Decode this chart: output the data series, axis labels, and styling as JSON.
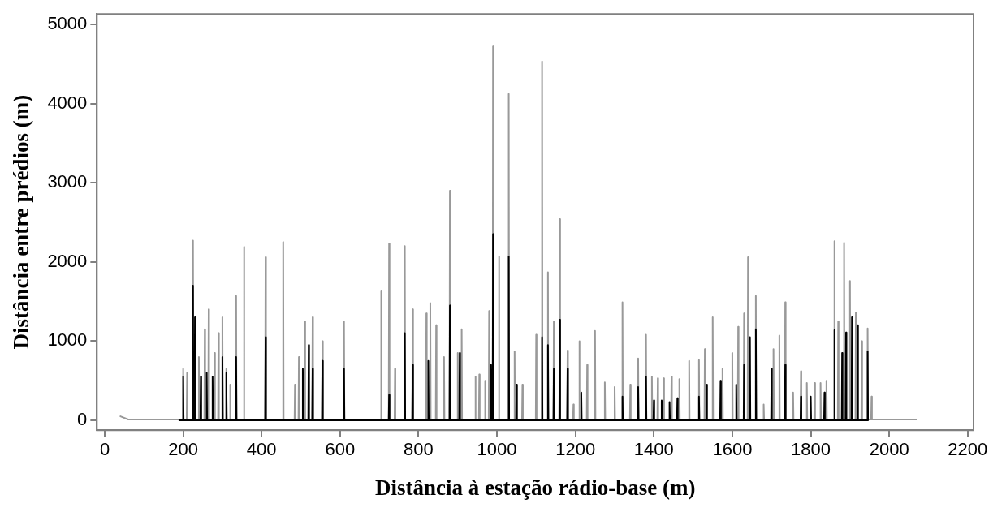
{
  "chart_data": {
    "type": "line",
    "xlabel": "Distância à estação rádio-base (m)",
    "ylabel": "Distância entre prédios (m)",
    "xlim": [
      -20,
      2215
    ],
    "ylim": [
      -125,
      5130
    ],
    "xticks": [
      0,
      200,
      400,
      600,
      800,
      1000,
      1200,
      1400,
      1600,
      1800,
      2000,
      2200
    ],
    "yticks": [
      0,
      1000,
      2000,
      3000,
      4000,
      5000
    ],
    "grid": false,
    "legend": false,
    "marker": "none",
    "line_style": "solid",
    "series": [
      {
        "color": "#999999",
        "x": [
          40,
          60,
          199,
          200,
          201,
          209,
          210,
          211,
          224,
          225,
          226,
          239,
          240,
          241,
          254,
          255,
          256,
          264,
          265,
          266,
          279,
          280,
          281,
          289,
          290,
          291,
          299,
          300,
          301,
          309,
          310,
          311,
          319,
          320,
          321,
          334,
          335,
          336,
          354,
          355,
          356,
          409,
          410,
          411,
          454,
          455,
          456,
          484,
          485,
          486,
          494,
          495,
          496,
          509,
          510,
          511,
          529,
          530,
          531,
          554,
          555,
          556,
          609,
          610,
          611,
          704,
          705,
          706,
          724,
          725,
          726,
          739,
          740,
          741,
          764,
          765,
          766,
          784,
          785,
          786,
          819,
          820,
          821,
          829,
          830,
          831,
          844,
          845,
          846,
          864,
          865,
          866,
          879,
          880,
          881,
          899,
          900,
          901,
          909,
          910,
          911,
          944,
          945,
          946,
          954,
          955,
          956,
          969,
          970,
          971,
          979,
          980,
          981,
          989,
          990,
          991,
          1004,
          1005,
          1006,
          1029,
          1030,
          1031,
          1044,
          1045,
          1046,
          1064,
          1065,
          1066,
          1099,
          1100,
          1101,
          1114,
          1115,
          1116,
          1129,
          1130,
          1131,
          1144,
          1145,
          1146,
          1159,
          1160,
          1161,
          1179,
          1180,
          1181,
          1194,
          1195,
          1196,
          1209,
          1210,
          1211,
          1229,
          1230,
          1231,
          1249,
          1250,
          1251,
          1274,
          1275,
          1276,
          1299,
          1300,
          1301,
          1319,
          1320,
          1321,
          1339,
          1340,
          1341,
          1359,
          1360,
          1361,
          1379,
          1380,
          1381,
          1394,
          1395,
          1396,
          1409,
          1410,
          1411,
          1424,
          1425,
          1426,
          1444,
          1445,
          1446,
          1464,
          1465,
          1466,
          1489,
          1490,
          1491,
          1514,
          1515,
          1516,
          1529,
          1530,
          1531,
          1549,
          1550,
          1551,
          1574,
          1575,
          1576,
          1599,
          1600,
          1601,
          1614,
          1615,
          1616,
          1629,
          1630,
          1631,
          1639,
          1640,
          1641,
          1659,
          1660,
          1661,
          1679,
          1680,
          1681,
          1704,
          1705,
          1706,
          1719,
          1720,
          1721,
          1734,
          1735,
          1736,
          1754,
          1755,
          1756,
          1774,
          1775,
          1776,
          1789,
          1790,
          1791,
          1809,
          1810,
          1811,
          1824,
          1825,
          1826,
          1839,
          1840,
          1841,
          1859,
          1860,
          1861,
          1869,
          1870,
          1871,
          1884,
          1885,
          1886,
          1899,
          1900,
          1901,
          1914,
          1915,
          1916,
          1929,
          1930,
          1931,
          1944,
          1945,
          1946,
          1954,
          1955,
          1956,
          2070
        ],
        "values": [
          50,
          10,
          10,
          650,
          10,
          10,
          600,
          10,
          10,
          2270,
          10,
          10,
          800,
          10,
          10,
          1150,
          10,
          10,
          1400,
          10,
          10,
          850,
          10,
          10,
          1100,
          10,
          10,
          1300,
          10,
          10,
          650,
          10,
          10,
          450,
          10,
          10,
          1570,
          10,
          10,
          2190,
          10,
          10,
          2060,
          10,
          10,
          2250,
          10,
          10,
          450,
          10,
          10,
          800,
          10,
          10,
          1250,
          10,
          10,
          1300,
          10,
          10,
          1000,
          10,
          10,
          1250,
          10,
          10,
          1630,
          10,
          10,
          2230,
          10,
          10,
          650,
          10,
          10,
          2200,
          10,
          10,
          1400,
          10,
          10,
          1350,
          10,
          10,
          1480,
          10,
          10,
          1200,
          10,
          10,
          800,
          10,
          10,
          2900,
          10,
          10,
          850,
          10,
          10,
          1150,
          10,
          10,
          550,
          10,
          10,
          580,
          10,
          10,
          500,
          10,
          10,
          1380,
          10,
          10,
          4720,
          10,
          10,
          2070,
          10,
          10,
          4120,
          10,
          10,
          870,
          10,
          10,
          450,
          10,
          10,
          1080,
          10,
          10,
          4530,
          10,
          10,
          1870,
          10,
          10,
          1250,
          10,
          10,
          2540,
          10,
          10,
          880,
          10,
          10,
          200,
          10,
          10,
          1000,
          10,
          10,
          700,
          10,
          10,
          1130,
          10,
          10,
          480,
          10,
          10,
          420,
          10,
          10,
          1490,
          10,
          10,
          450,
          10,
          10,
          780,
          10,
          10,
          1080,
          10,
          10,
          550,
          10,
          10,
          530,
          10,
          10,
          530,
          10,
          10,
          550,
          10,
          10,
          520,
          10,
          10,
          750,
          10,
          10,
          760,
          10,
          10,
          900,
          10,
          10,
          1300,
          10,
          10,
          650,
          10,
          10,
          850,
          10,
          10,
          1180,
          10,
          10,
          1350,
          10,
          10,
          2060,
          10,
          10,
          1570,
          10,
          10,
          200,
          10,
          10,
          900,
          10,
          10,
          1070,
          10,
          10,
          1490,
          10,
          10,
          350,
          10,
          10,
          620,
          10,
          10,
          470,
          10,
          10,
          470,
          10,
          10,
          470,
          10,
          10,
          500,
          10,
          10,
          2260,
          10,
          10,
          1250,
          10,
          10,
          2240,
          10,
          10,
          1760,
          10,
          10,
          1360,
          10,
          10,
          1000,
          10,
          10,
          1160,
          10,
          10,
          300,
          10,
          10
        ]
      },
      {
        "color": "#000000",
        "x": [
          190,
          199,
          200,
          201,
          224,
          225,
          226,
          229,
          230,
          231,
          244,
          245,
          246,
          259,
          260,
          261,
          274,
          275,
          276,
          299,
          300,
          301,
          309,
          310,
          311,
          334,
          335,
          336,
          409,
          410,
          411,
          504,
          505,
          506,
          519,
          520,
          521,
          529,
          530,
          531,
          554,
          555,
          556,
          609,
          610,
          611,
          724,
          725,
          726,
          764,
          765,
          766,
          784,
          785,
          786,
          824,
          825,
          826,
          879,
          880,
          881,
          904,
          905,
          906,
          984,
          985,
          986,
          989,
          990,
          991,
          1029,
          1030,
          1031,
          1049,
          1050,
          1051,
          1114,
          1115,
          1116,
          1129,
          1130,
          1131,
          1144,
          1145,
          1146,
          1159,
          1160,
          1161,
          1179,
          1180,
          1181,
          1214,
          1215,
          1216,
          1319,
          1320,
          1321,
          1359,
          1360,
          1361,
          1379,
          1380,
          1381,
          1399,
          1400,
          1401,
          1419,
          1420,
          1421,
          1439,
          1440,
          1441,
          1459,
          1460,
          1461,
          1514,
          1515,
          1516,
          1534,
          1535,
          1536,
          1569,
          1570,
          1571,
          1609,
          1610,
          1611,
          1629,
          1630,
          1631,
          1644,
          1645,
          1646,
          1659,
          1660,
          1661,
          1699,
          1700,
          1701,
          1734,
          1735,
          1736,
          1774,
          1775,
          1776,
          1799,
          1800,
          1801,
          1834,
          1835,
          1836,
          1859,
          1860,
          1861,
          1879,
          1880,
          1881,
          1889,
          1890,
          1891,
          1904,
          1905,
          1906,
          1919,
          1920,
          1921,
          1944,
          1945,
          1946
        ],
        "values": [
          0,
          0,
          550,
          0,
          0,
          1700,
          0,
          0,
          1300,
          0,
          0,
          550,
          0,
          0,
          600,
          0,
          0,
          550,
          0,
          0,
          800,
          0,
          0,
          600,
          0,
          0,
          800,
          0,
          0,
          1050,
          0,
          0,
          650,
          0,
          0,
          950,
          0,
          0,
          650,
          0,
          0,
          750,
          0,
          0,
          650,
          0,
          0,
          320,
          0,
          0,
          1100,
          0,
          0,
          700,
          0,
          0,
          750,
          0,
          0,
          1450,
          0,
          0,
          850,
          0,
          0,
          700,
          0,
          0,
          2350,
          0,
          0,
          2070,
          0,
          0,
          450,
          0,
          0,
          1050,
          0,
          0,
          950,
          0,
          0,
          650,
          0,
          0,
          1270,
          0,
          0,
          650,
          0,
          0,
          350,
          0,
          0,
          300,
          0,
          0,
          420,
          0,
          0,
          550,
          0,
          0,
          250,
          0,
          0,
          250,
          0,
          0,
          230,
          0,
          0,
          280,
          0,
          0,
          300,
          0,
          0,
          450,
          0,
          0,
          500,
          0,
          0,
          450,
          0,
          0,
          700,
          0,
          0,
          1050,
          0,
          0,
          1150,
          0,
          0,
          650,
          0,
          0,
          700,
          0,
          0,
          300,
          0,
          0,
          300,
          0,
          0,
          350,
          0,
          0,
          1140,
          0,
          0,
          850,
          0,
          0,
          1110,
          0,
          0,
          1300,
          0,
          0,
          1200,
          0,
          0,
          870,
          0
        ]
      }
    ]
  }
}
